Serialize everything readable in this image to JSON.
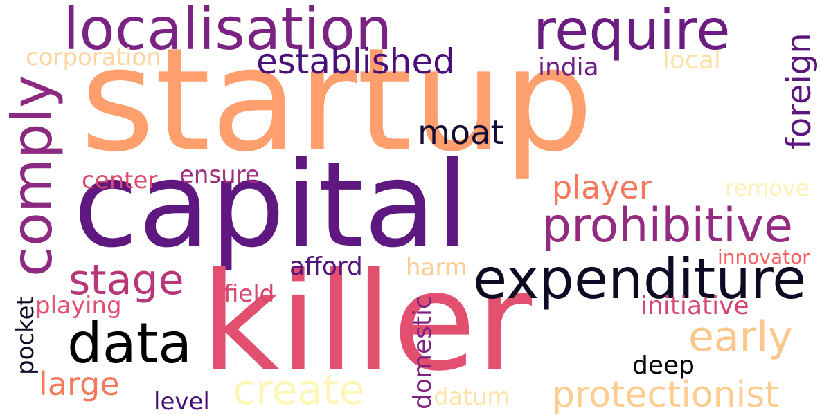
{
  "words": [
    {
      "text": "startup",
      "color": "#fe9f6d"
    },
    {
      "text": "capital",
      "color": "#5f187f"
    },
    {
      "text": "killer",
      "color": "#e34f6f"
    },
    {
      "text": "expenditure",
      "color": "#0d0a23"
    },
    {
      "text": "localisation",
      "color": "#7a2382"
    },
    {
      "text": "require",
      "color": "#6a1c81"
    },
    {
      "text": "comply",
      "color": "#8c2981"
    },
    {
      "text": "data",
      "color": "#000004"
    },
    {
      "text": "prohibitive",
      "color": "#932b80"
    },
    {
      "text": "established",
      "color": "#4a1079"
    },
    {
      "text": "create",
      "color": "#fcf6b8"
    },
    {
      "text": "protectionist",
      "color": "#fdcd90"
    },
    {
      "text": "stage",
      "color": "#b73779"
    },
    {
      "text": "early",
      "color": "#fcc68c"
    },
    {
      "text": "moat",
      "color": "#140e36"
    },
    {
      "text": "foreign",
      "color": "#5b167e"
    },
    {
      "text": "player",
      "color": "#f4785c"
    },
    {
      "text": "large",
      "color": "#f37b5c"
    },
    {
      "text": "corporation",
      "color": "#fdd49e"
    },
    {
      "text": "india",
      "color": "#6b1c81"
    },
    {
      "text": "local",
      "color": "#fde2a8"
    },
    {
      "text": "center",
      "color": "#dd4a6d"
    },
    {
      "text": "ensure",
      "color": "#a1307e"
    },
    {
      "text": "remove",
      "color": "#fcf1b6"
    },
    {
      "text": "afford",
      "color": "#51137c"
    },
    {
      "text": "harm",
      "color": "#fecb93"
    },
    {
      "text": "innovator",
      "color": "#ef6462"
    },
    {
      "text": "field",
      "color": "#d6466f"
    },
    {
      "text": "playing",
      "color": "#e34f6f"
    },
    {
      "text": "initiative",
      "color": "#d6456f"
    },
    {
      "text": "pocket",
      "color": "#0e0b28"
    },
    {
      "text": "domestic",
      "color": "#7f2482"
    },
    {
      "text": "deep",
      "color": "#000004"
    },
    {
      "text": "level",
      "color": "#461078"
    },
    {
      "text": "datum",
      "color": "#fde4aa"
    }
  ]
}
